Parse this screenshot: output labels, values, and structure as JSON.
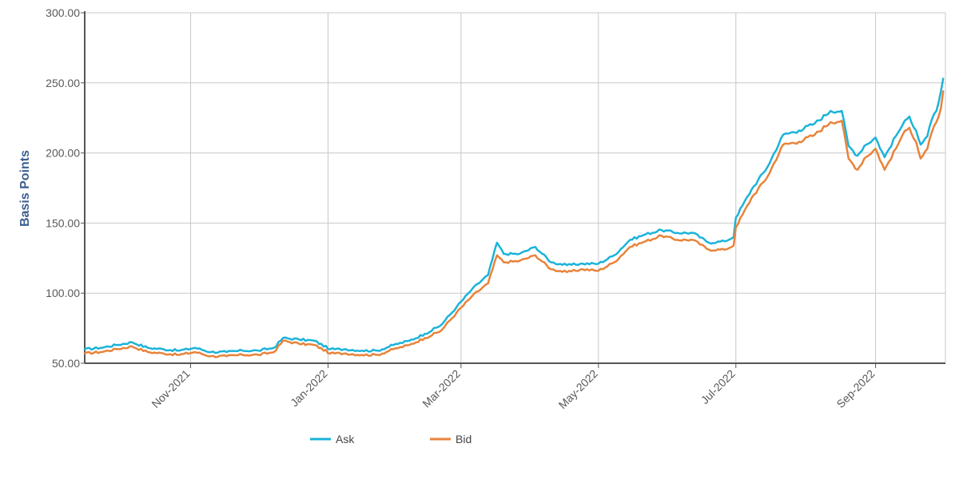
{
  "chart_data": {
    "type": "line",
    "ylabel": "Basis Points",
    "xlabel": "",
    "ylim": [
      50,
      300
    ],
    "y_ticks": [
      "50.00",
      "100.00",
      "150.00",
      "200.00",
      "250.00",
      "300.00"
    ],
    "x_range": [
      "2021-09-15",
      "2022-10-02"
    ],
    "x_ticks": [
      {
        "label": "Nov-2021",
        "date": "2021-11-01"
      },
      {
        "label": "Jan-2022",
        "date": "2022-01-01"
      },
      {
        "label": "Mar-2022",
        "date": "2022-03-01"
      },
      {
        "label": "May-2022",
        "date": "2022-05-01"
      },
      {
        "label": "Jul-2022",
        "date": "2022-07-01"
      },
      {
        "label": "Sep-2022",
        "date": "2022-09-01"
      }
    ],
    "grid": true,
    "legend_position": "bottom",
    "series": [
      {
        "name": "Ask",
        "color": "#1bb3d9",
        "points": [
          [
            "2021-09-15",
            60
          ],
          [
            "2021-09-22",
            61
          ],
          [
            "2021-09-29",
            63
          ],
          [
            "2021-10-06",
            65
          ],
          [
            "2021-10-13",
            61
          ],
          [
            "2021-10-20",
            60
          ],
          [
            "2021-10-27",
            59
          ],
          [
            "2021-11-03",
            61
          ],
          [
            "2021-11-10",
            58
          ],
          [
            "2021-11-17",
            58
          ],
          [
            "2021-11-24",
            59
          ],
          [
            "2021-12-01",
            59
          ],
          [
            "2021-12-08",
            61
          ],
          [
            "2021-12-12",
            68
          ],
          [
            "2021-12-19",
            67
          ],
          [
            "2021-12-26",
            66
          ],
          [
            "2022-01-02",
            60
          ],
          [
            "2022-01-09",
            60
          ],
          [
            "2022-01-16",
            59
          ],
          [
            "2022-01-23",
            59
          ],
          [
            "2022-01-30",
            63
          ],
          [
            "2022-02-06",
            66
          ],
          [
            "2022-02-13",
            71
          ],
          [
            "2022-02-20",
            77
          ],
          [
            "2022-02-27",
            90
          ],
          [
            "2022-03-06",
            103
          ],
          [
            "2022-03-13",
            113
          ],
          [
            "2022-03-17",
            136
          ],
          [
            "2022-03-20",
            128
          ],
          [
            "2022-03-27",
            128
          ],
          [
            "2022-04-03",
            133
          ],
          [
            "2022-04-10",
            122
          ],
          [
            "2022-04-17",
            120
          ],
          [
            "2022-04-24",
            121
          ],
          [
            "2022-05-01",
            121
          ],
          [
            "2022-05-08",
            127
          ],
          [
            "2022-05-15",
            138
          ],
          [
            "2022-05-22",
            142
          ],
          [
            "2022-05-29",
            145
          ],
          [
            "2022-06-05",
            143
          ],
          [
            "2022-06-12",
            143
          ],
          [
            "2022-06-19",
            136
          ],
          [
            "2022-06-26",
            137
          ],
          [
            "2022-06-30",
            140
          ],
          [
            "2022-07-01",
            154
          ],
          [
            "2022-07-08",
            174
          ],
          [
            "2022-07-15",
            190
          ],
          [
            "2022-07-22",
            213
          ],
          [
            "2022-07-29",
            216
          ],
          [
            "2022-08-05",
            221
          ],
          [
            "2022-08-12",
            230
          ],
          [
            "2022-08-17",
            230
          ],
          [
            "2022-08-20",
            205
          ],
          [
            "2022-08-24",
            198
          ],
          [
            "2022-08-27",
            205
          ],
          [
            "2022-09-01",
            211
          ],
          [
            "2022-09-05",
            197
          ],
          [
            "2022-09-10",
            212
          ],
          [
            "2022-09-13",
            220
          ],
          [
            "2022-09-16",
            226
          ],
          [
            "2022-09-19",
            216
          ],
          [
            "2022-09-21",
            206
          ],
          [
            "2022-09-24",
            212
          ],
          [
            "2022-09-26",
            224
          ],
          [
            "2022-09-28",
            230
          ],
          [
            "2022-09-30",
            244
          ],
          [
            "2022-10-01",
            253
          ]
        ]
      },
      {
        "name": "Bid",
        "color": "#e8833a",
        "points": [
          [
            "2021-09-15",
            57
          ],
          [
            "2021-09-22",
            58
          ],
          [
            "2021-09-29",
            60
          ],
          [
            "2021-10-06",
            62
          ],
          [
            "2021-10-13",
            58
          ],
          [
            "2021-10-20",
            57
          ],
          [
            "2021-10-27",
            56
          ],
          [
            "2021-11-03",
            58
          ],
          [
            "2021-11-10",
            55
          ],
          [
            "2021-11-17",
            55
          ],
          [
            "2021-11-24",
            56
          ],
          [
            "2021-12-01",
            56
          ],
          [
            "2021-12-08",
            58
          ],
          [
            "2021-12-12",
            66
          ],
          [
            "2021-12-19",
            64
          ],
          [
            "2021-12-26",
            63
          ],
          [
            "2022-01-02",
            57
          ],
          [
            "2022-01-09",
            57
          ],
          [
            "2022-01-16",
            56
          ],
          [
            "2022-01-23",
            56
          ],
          [
            "2022-01-30",
            60
          ],
          [
            "2022-02-06",
            63
          ],
          [
            "2022-02-13",
            68
          ],
          [
            "2022-02-20",
            73
          ],
          [
            "2022-02-27",
            86
          ],
          [
            "2022-03-06",
            98
          ],
          [
            "2022-03-13",
            107
          ],
          [
            "2022-03-17",
            127
          ],
          [
            "2022-03-20",
            122
          ],
          [
            "2022-03-27",
            123
          ],
          [
            "2022-04-03",
            127
          ],
          [
            "2022-04-10",
            117
          ],
          [
            "2022-04-17",
            115
          ],
          [
            "2022-04-24",
            117
          ],
          [
            "2022-05-01",
            116
          ],
          [
            "2022-05-08",
            122
          ],
          [
            "2022-05-15",
            133
          ],
          [
            "2022-05-22",
            137
          ],
          [
            "2022-05-29",
            141
          ],
          [
            "2022-06-05",
            138
          ],
          [
            "2022-06-12",
            138
          ],
          [
            "2022-06-19",
            131
          ],
          [
            "2022-06-26",
            131
          ],
          [
            "2022-06-30",
            134
          ],
          [
            "2022-07-01",
            147
          ],
          [
            "2022-07-08",
            168
          ],
          [
            "2022-07-15",
            183
          ],
          [
            "2022-07-22",
            206
          ],
          [
            "2022-07-29",
            208
          ],
          [
            "2022-08-05",
            213
          ],
          [
            "2022-08-12",
            222
          ],
          [
            "2022-08-17",
            223
          ],
          [
            "2022-08-20",
            196
          ],
          [
            "2022-08-24",
            188
          ],
          [
            "2022-08-27",
            196
          ],
          [
            "2022-09-01",
            203
          ],
          [
            "2022-09-05",
            188
          ],
          [
            "2022-09-10",
            203
          ],
          [
            "2022-09-13",
            213
          ],
          [
            "2022-09-16",
            218
          ],
          [
            "2022-09-19",
            208
          ],
          [
            "2022-09-21",
            196
          ],
          [
            "2022-09-24",
            203
          ],
          [
            "2022-09-26",
            215
          ],
          [
            "2022-09-28",
            222
          ],
          [
            "2022-09-30",
            232
          ],
          [
            "2022-10-01",
            244
          ]
        ]
      }
    ]
  }
}
